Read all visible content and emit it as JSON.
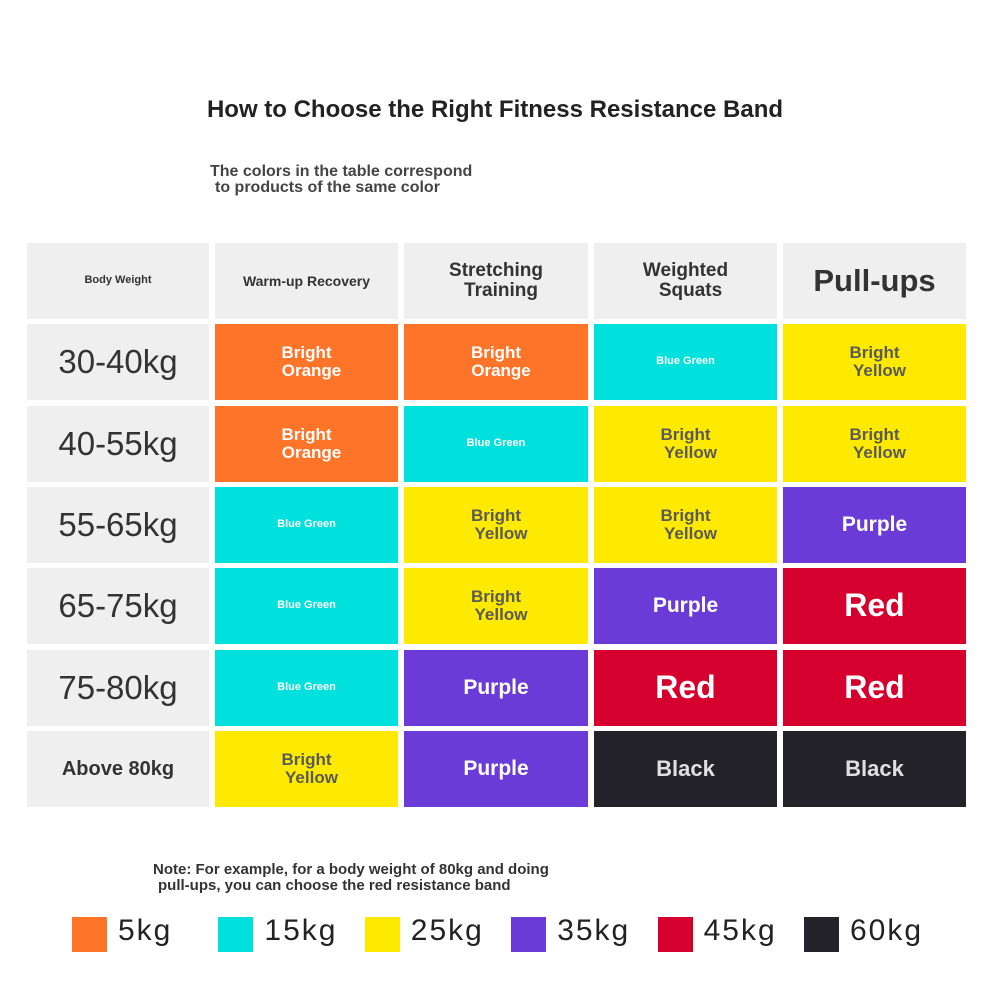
{
  "title": "How to Choose the Right Fitness Resistance Band",
  "subtitle": [
    "The colors in the table correspond",
    "to products of the same color"
  ],
  "table": {
    "header": [
      {
        "lines": [
          "Body Weight"
        ]
      },
      {
        "lines": [
          "Warm-up Recovery"
        ]
      },
      {
        "lines": [
          "Stretching",
          "Training"
        ]
      },
      {
        "lines": [
          "Weighted",
          "Squats"
        ]
      },
      {
        "lines": [
          "Pull-ups"
        ]
      }
    ],
    "rows": [
      {
        "weight": "30-40kg",
        "cells": [
          {
            "lines": [
              "Bright",
              "Orange"
            ],
            "color": "#fe7429"
          },
          {
            "lines": [
              "Bright",
              "Orange"
            ],
            "color": "#fe7429"
          },
          {
            "lines": [
              "Blue Green"
            ],
            "color": "#00e0dc"
          },
          {
            "lines": [
              "Bright",
              "Yellow"
            ],
            "color": "#fdea00"
          }
        ]
      },
      {
        "weight": "40-55kg",
        "cells": [
          {
            "lines": [
              "Bright",
              "Orange"
            ],
            "color": "#fe7429"
          },
          {
            "lines": [
              "Blue Green"
            ],
            "color": "#00e0dc"
          },
          {
            "lines": [
              "Bright",
              "Yellow"
            ],
            "color": "#fdea00"
          },
          {
            "lines": [
              "Bright",
              "Yellow"
            ],
            "color": "#fdea00"
          }
        ]
      },
      {
        "weight": "55-65kg",
        "cells": [
          {
            "lines": [
              "Blue Green"
            ],
            "color": "#00e0dc"
          },
          {
            "lines": [
              "Bright",
              "Yellow"
            ],
            "color": "#fdea00"
          },
          {
            "lines": [
              "Bright",
              "Yellow"
            ],
            "color": "#fdea00"
          },
          {
            "lines": [
              "Purple"
            ],
            "color": "#6a3bd6"
          }
        ]
      },
      {
        "weight": "65-75kg",
        "cells": [
          {
            "lines": [
              "Blue Green"
            ],
            "color": "#00e0dc"
          },
          {
            "lines": [
              "Bright",
              "Yellow"
            ],
            "color": "#fdea00"
          },
          {
            "lines": [
              "Purple"
            ],
            "color": "#6a3bd6"
          },
          {
            "lines": [
              "Red"
            ],
            "color": "#d6002f"
          }
        ]
      },
      {
        "weight": "75-80kg",
        "cells": [
          {
            "lines": [
              "Blue Green"
            ],
            "color": "#00e0dc"
          },
          {
            "lines": [
              "Purple"
            ],
            "color": "#6a3bd6"
          },
          {
            "lines": [
              "Red"
            ],
            "color": "#d6002f"
          },
          {
            "lines": [
              "Red"
            ],
            "color": "#d6002f"
          }
        ]
      },
      {
        "weight": "Above 80kg",
        "cells": [
          {
            "lines": [
              "Bright",
              "Yellow"
            ],
            "color": "#fdea00"
          },
          {
            "lines": [
              "Purple"
            ],
            "color": "#6a3bd6"
          },
          {
            "lines": [
              "Black"
            ],
            "color": "#25232a"
          },
          {
            "lines": [
              "Black"
            ],
            "color": "#25232a"
          }
        ]
      }
    ]
  },
  "note": [
    "Note: For example, for a body weight of 80kg and doing",
    "pull-ups, you can choose the red resistance band"
  ],
  "legend": [
    {
      "label": "5kg",
      "color": "#fe7429"
    },
    {
      "label": "15kg",
      "color": "#00e0dc"
    },
    {
      "label": "25kg",
      "color": "#fdea00"
    },
    {
      "label": "35kg",
      "color": "#6a3bd6"
    },
    {
      "label": "45kg",
      "color": "#d6002f"
    },
    {
      "label": "60kg",
      "color": "#25232a"
    }
  ]
}
